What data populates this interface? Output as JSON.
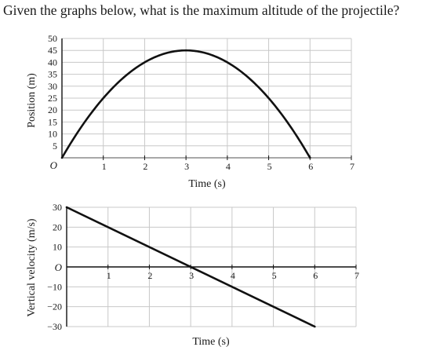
{
  "question": "Given the graphs below, what is the maximum altitude of the projectile?",
  "chart_data": [
    {
      "type": "line",
      "title": "",
      "xlabel": "Time (s)",
      "ylabel": "Position (m)",
      "xlim": [
        0,
        7
      ],
      "ylim": [
        0,
        50
      ],
      "grid": true,
      "xticks": [
        "1",
        "2",
        "3",
        "4",
        "5",
        "6",
        "7"
      ],
      "yticks": [
        "5",
        "10",
        "15",
        "20",
        "25",
        "30",
        "35",
        "40",
        "45",
        "50"
      ],
      "origin_label": "O",
      "series": [
        {
          "x": [
            0,
            0.5,
            1,
            1.5,
            2,
            2.5,
            3,
            3.5,
            4,
            4.5,
            5,
            5.5,
            6
          ],
          "y": [
            0,
            13.75,
            25,
            33.75,
            40,
            43.75,
            45,
            43.75,
            40,
            33.75,
            25,
            13.75,
            0
          ]
        }
      ],
      "line_color": "#111111"
    },
    {
      "type": "line",
      "title": "",
      "xlabel": "Time (s)",
      "ylabel": "Vertical velocity (m/s)",
      "xlim": [
        0,
        7
      ],
      "ylim": [
        -30,
        30
      ],
      "grid": true,
      "xticks": [
        "1",
        "2",
        "3",
        "4",
        "5",
        "6",
        "7"
      ],
      "yticks": [
        "30",
        "20",
        "10",
        "−10",
        "−20",
        "−30"
      ],
      "origin_label": "O",
      "series": [
        {
          "x": [
            0,
            6
          ],
          "y": [
            30,
            -30
          ]
        }
      ],
      "line_color": "#111111"
    }
  ]
}
